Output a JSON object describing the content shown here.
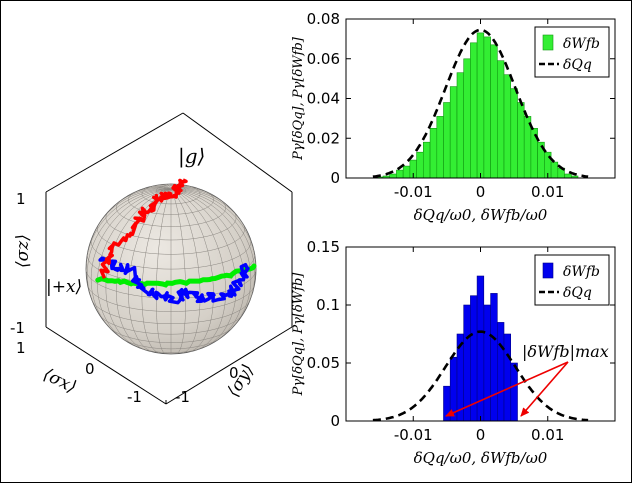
{
  "colors": {
    "sphere": "#d9d4cc",
    "red_trajectory": "#ff0000",
    "blue_trajectory": "#0000ff",
    "green_trajectory": "#00ee00",
    "hist_green": "#33ee33",
    "hist_blue": "#0000ee",
    "gaussian": "#000000",
    "annotation": "#ee0000"
  },
  "chart_data": [
    {
      "type": "bloch-sphere",
      "labels": {
        "top_state": "|g⟩",
        "plus_state": "|+x⟩",
        "zlabel": "⟨σz⟩",
        "xlabel": "⟨σx⟩",
        "ylabel": "⟨σy⟩"
      },
      "zticks": [
        "1",
        "-1"
      ],
      "xticks": [
        "1",
        "0",
        "-1"
      ],
      "yticks": [
        "0",
        "-1"
      ],
      "series": [
        {
          "color": "red"
        },
        {
          "color": "blue"
        },
        {
          "color": "green"
        }
      ]
    },
    {
      "type": "bar",
      "ylabel": "Pγ[δQq], Pγ[δWfb]",
      "xlabel": "δQq/ω0, δWfb/ω0",
      "xlim": [
        -0.02,
        0.02
      ],
      "ylim": [
        0,
        0.08
      ],
      "xticks": [
        "-0.01",
        "0",
        "0.01"
      ],
      "yticks": [
        "0",
        "0.02",
        "0.04",
        "0.06",
        "0.08"
      ],
      "legend": {
        "placement": "top-right",
        "entries": [
          "δWfb",
          "δQq"
        ]
      },
      "bars": {
        "name": "δWfb",
        "color": "green",
        "bin_width": 0.001,
        "x": [
          -0.015,
          -0.014,
          -0.013,
          -0.012,
          -0.011,
          -0.01,
          -0.009,
          -0.008,
          -0.007,
          -0.006,
          -0.005,
          -0.004,
          -0.003,
          -0.002,
          -0.001,
          0.0,
          0.001,
          0.002,
          0.003,
          0.004,
          0.005,
          0.006,
          0.007,
          0.008,
          0.009,
          0.01,
          0.011,
          0.012,
          0.013,
          0.014
        ],
        "values": [
          0.0005,
          0.001,
          0.002,
          0.004,
          0.006,
          0.009,
          0.013,
          0.018,
          0.025,
          0.031,
          0.038,
          0.046,
          0.053,
          0.06,
          0.068,
          0.073,
          0.071,
          0.067,
          0.059,
          0.052,
          0.045,
          0.038,
          0.031,
          0.025,
          0.018,
          0.013,
          0.008,
          0.005,
          0.002,
          0.001
        ]
      },
      "curve": {
        "name": "δQq",
        "style": "dashed",
        "mu": 0.0,
        "sigma": 0.0052,
        "peak": 0.0745
      }
    },
    {
      "type": "bar",
      "ylabel": "Pγ[δQq], Pγ[δWfb]",
      "xlabel": "δQq/ω0, δWfb/ω0",
      "xlim": [
        -0.02,
        0.02
      ],
      "ylim": [
        0,
        0.15
      ],
      "xticks": [
        "-0.01",
        "0",
        "0.01"
      ],
      "yticks": [
        "0",
        "0.05",
        "0.1",
        "0.15"
      ],
      "legend": {
        "placement": "top-right",
        "entries": [
          "δWfb",
          "δQq"
        ]
      },
      "annotation": "|δWfb|max",
      "bars": {
        "name": "δWfb",
        "color": "blue",
        "bin_width": 0.001,
        "x": [
          -0.005,
          -0.004,
          -0.003,
          -0.002,
          -0.001,
          0.0,
          0.001,
          0.002,
          0.003,
          0.004,
          0.005
        ],
        "values": [
          0.03,
          0.055,
          0.075,
          0.1,
          0.108,
          0.125,
          0.1,
          0.11,
          0.085,
          0.075,
          0.05
        ]
      },
      "curve": {
        "name": "δQq",
        "style": "dashed",
        "mu": 0.0,
        "sigma": 0.0052,
        "peak": 0.077
      }
    }
  ]
}
